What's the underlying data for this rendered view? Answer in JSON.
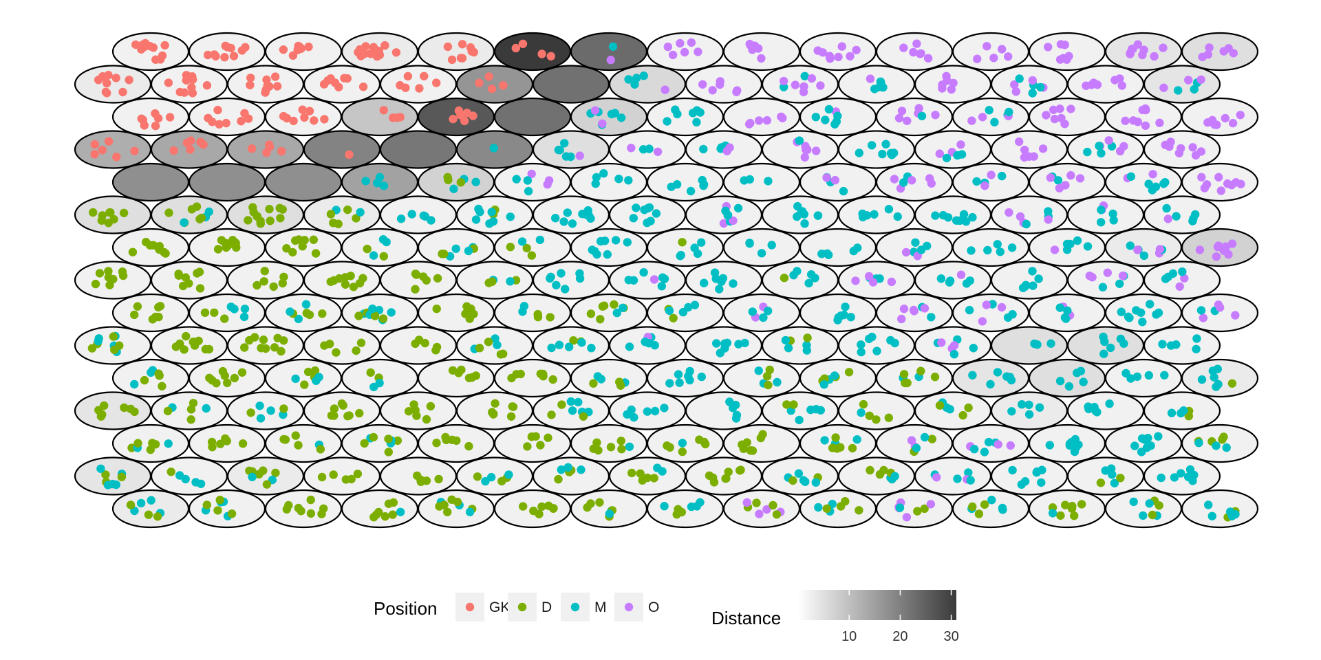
{
  "colors": {
    "GK": "#F8766D",
    "D": "#7CAE00",
    "M": "#00BFC4",
    "O": "#C77CFF",
    "distance_low": "#f7f7f7",
    "distance_high": "#3a3a3a",
    "cell_border": "#000000"
  },
  "chart_data": {
    "type": "heatmap",
    "grid": false,
    "x": {
      "columns": 15,
      "range": [
        1,
        15
      ]
    },
    "y": {
      "rows": 15,
      "range": [
        1,
        15
      ]
    },
    "legend_placement": "bottom",
    "distance_scale": {
      "min": 0,
      "max": 31,
      "breaks": [
        10,
        20,
        30
      ],
      "break_labels": [
        "10",
        "20",
        "30"
      ]
    },
    "position_legend": {
      "title": "Position",
      "entries": [
        {
          "key": "GK",
          "label": "GK"
        },
        {
          "key": "D",
          "label": "D"
        },
        {
          "key": "M",
          "label": "M"
        },
        {
          "key": "O",
          "label": "O"
        }
      ]
    },
    "distance_legend": {
      "title": "Distance"
    },
    "rows": [
      {
        "distance": [
          1,
          1,
          1,
          2,
          2,
          31,
          23,
          1,
          1,
          1,
          1,
          1,
          1,
          3,
          4
        ],
        "composition": [
          "GK",
          "GK",
          "GK",
          "GK",
          "GK",
          "GK",
          "M+O",
          "O",
          "O",
          "O",
          "O",
          "O",
          "O",
          "O",
          "O"
        ],
        "counts": [
          11,
          10,
          7,
          13,
          8,
          4,
          2,
          6,
          7,
          8,
          6,
          5,
          7,
          9,
          6
        ]
      },
      {
        "distance": [
          2,
          1,
          1,
          1,
          1,
          16,
          22,
          5,
          1,
          1,
          1,
          1,
          1,
          1,
          3
        ],
        "composition": [
          "GK",
          "GK",
          "GK",
          "GK",
          "GK",
          "GK",
          "none",
          "O+M",
          "O",
          "O+M",
          "M+O",
          "O",
          "M+O",
          "O",
          "O+M"
        ],
        "counts": [
          9,
          10,
          9,
          8,
          6,
          4,
          0,
          5,
          6,
          8,
          6,
          6,
          8,
          7,
          6
        ]
      },
      {
        "distance": [
          1,
          1,
          1,
          8,
          26,
          22,
          6,
          1,
          1,
          1,
          1,
          1,
          1,
          1,
          1
        ],
        "composition": [
          "GK",
          "GK",
          "GK",
          "GK",
          "GK",
          "none",
          "M+O",
          "M",
          "O",
          "M+O",
          "M+O",
          "O+M",
          "O+M",
          "O",
          "O"
        ],
        "counts": [
          7,
          8,
          8,
          4,
          6,
          0,
          8,
          7,
          6,
          7,
          7,
          7,
          7,
          8,
          7
        ]
      },
      {
        "distance": [
          12,
          13,
          13,
          19,
          21,
          18,
          4,
          1,
          1,
          1,
          1,
          1,
          1,
          1,
          1
        ],
        "composition": [
          "GK",
          "GK",
          "GK",
          "GK",
          "none",
          "M",
          "M+O",
          "M+O",
          "M+O",
          "O+M",
          "M",
          "M+O",
          "O",
          "O+M",
          "O"
        ],
        "counts": [
          6,
          6,
          5,
          1,
          0,
          1,
          6,
          4,
          6,
          7,
          7,
          6,
          6,
          8,
          8
        ]
      },
      {
        "distance": [
          17,
          17,
          17,
          14,
          6,
          1,
          1,
          1,
          1,
          1,
          1,
          1,
          1,
          1,
          1
        ],
        "composition": [
          "none",
          "none",
          "none",
          "M+D",
          "M+D",
          "M+O",
          "M",
          "M",
          "M",
          "M+O",
          "O+M",
          "M+O",
          "O+M",
          "M+O",
          "O"
        ],
        "counts": [
          0,
          0,
          0,
          4,
          6,
          6,
          5,
          6,
          3,
          5,
          7,
          5,
          7,
          8,
          9
        ]
      },
      {
        "distance": [
          4,
          4,
          4,
          2,
          1,
          1,
          1,
          1,
          1,
          1,
          1,
          1,
          1,
          1,
          1
        ],
        "composition": [
          "D",
          "D+M",
          "D",
          "D+M",
          "M",
          "M+D",
          "M",
          "M",
          "M+O",
          "M",
          "M",
          "M",
          "M+O",
          "M+O",
          "M+O"
        ],
        "counts": [
          8,
          9,
          12,
          7,
          5,
          9,
          9,
          8,
          8,
          8,
          6,
          8,
          7,
          6,
          6
        ]
      },
      {
        "distance": [
          1,
          1,
          1,
          1,
          1,
          1,
          1,
          1,
          1,
          1,
          1,
          1,
          1,
          2,
          6
        ],
        "composition": [
          "D",
          "D",
          "D",
          "D+M",
          "M+D",
          "D+M",
          "M",
          "M+D",
          "M",
          "M",
          "M+O",
          "M",
          "M+O",
          "M+O",
          "O"
        ],
        "counts": [
          8,
          9,
          8,
          5,
          7,
          5,
          8,
          6,
          4,
          5,
          6,
          5,
          6,
          7,
          9
        ]
      },
      {
        "distance": [
          1,
          1,
          1,
          1,
          1,
          1,
          1,
          1,
          1,
          1,
          1,
          1,
          1,
          1,
          1
        ],
        "composition": [
          "D",
          "D",
          "D",
          "D",
          "D+M",
          "D+M",
          "M",
          "M+O",
          "M",
          "M+D",
          "O+M",
          "M+O",
          "M",
          "M+O",
          "M+O"
        ],
        "counts": [
          8,
          8,
          6,
          9,
          6,
          5,
          7,
          7,
          7,
          6,
          7,
          6,
          6,
          7,
          6
        ]
      },
      {
        "distance": [
          1,
          1,
          1,
          1,
          1,
          1,
          1,
          1,
          1,
          1,
          1,
          1,
          1,
          1,
          1
        ],
        "composition": [
          "D",
          "D+M",
          "D+M",
          "D+M",
          "D",
          "M+D",
          "D+M",
          "M+D",
          "M+O",
          "M",
          "O+M",
          "O+M",
          "M+O",
          "M",
          "M+O"
        ],
        "counts": [
          7,
          7,
          7,
          10,
          7,
          5,
          8,
          6,
          5,
          6,
          7,
          7,
          6,
          9,
          6
        ]
      },
      {
        "distance": [
          1,
          1,
          1,
          1,
          1,
          1,
          1,
          1,
          1,
          1,
          1,
          1,
          4,
          4,
          1
        ],
        "composition": [
          "D+M",
          "D",
          "D",
          "D",
          "D",
          "D+M",
          "M+D",
          "M+O",
          "M",
          "M+D",
          "M",
          "M+O",
          "M+O",
          "M+O",
          "M"
        ],
        "counts": [
          10,
          10,
          10,
          5,
          5,
          7,
          7,
          6,
          7,
          6,
          7,
          7,
          3,
          6,
          5
        ]
      },
      {
        "distance": [
          1,
          1,
          1,
          1,
          1,
          1,
          1,
          1,
          1,
          1,
          1,
          3,
          4,
          1,
          2
        ],
        "composition": [
          "D+M",
          "D",
          "D+M",
          "D+M",
          "D",
          "D",
          "M+D",
          "M",
          "M+D",
          "M+D",
          "D+M",
          "M",
          "M",
          "M",
          "M+O+D"
        ],
        "counts": [
          7,
          8,
          7,
          4,
          6,
          7,
          6,
          7,
          6,
          7,
          7,
          6,
          5,
          5,
          7
        ]
      },
      {
        "distance": [
          3,
          1,
          1,
          1,
          1,
          1,
          1,
          1,
          1,
          1,
          1,
          1,
          2,
          1,
          1
        ],
        "composition": [
          "D",
          "D+M",
          "D+M",
          "D",
          "D",
          "D",
          "D+M",
          "M",
          "M",
          "M+D",
          "M+D",
          "M+D",
          "M",
          "M",
          "M+D"
        ],
        "counts": [
          7,
          6,
          6,
          8,
          6,
          7,
          8,
          6,
          5,
          7,
          5,
          6,
          5,
          6,
          5
        ]
      },
      {
        "distance": [
          1,
          1,
          1,
          1,
          1,
          1,
          1,
          1,
          1,
          1,
          1,
          1,
          1,
          1,
          1
        ],
        "composition": [
          "D+M",
          "D",
          "D+M",
          "D+M",
          "D",
          "D",
          "D+M",
          "D+M",
          "D",
          "D+M",
          "D+O+M",
          "M+O",
          "M",
          "M",
          "M+D"
        ],
        "counts": [
          7,
          6,
          6,
          8,
          6,
          5,
          7,
          7,
          7,
          8,
          6,
          7,
          8,
          8,
          7
        ]
      },
      {
        "distance": [
          3,
          1,
          2,
          1,
          1,
          1,
          1,
          1,
          1,
          1,
          1,
          1,
          1,
          1,
          1
        ],
        "composition": [
          "D+M",
          "D+M",
          "D+M",
          "D",
          "D",
          "D+M",
          "D+M",
          "D+M",
          "D",
          "D+M",
          "M+D",
          "M+O+D",
          "M",
          "M+D",
          "M"
        ],
        "counts": [
          8,
          5,
          8,
          5,
          5,
          6,
          6,
          7,
          8,
          7,
          7,
          6,
          7,
          6,
          7
        ]
      },
      {
        "distance": [
          2,
          1,
          1,
          1,
          1,
          1,
          1,
          1,
          1,
          1,
          1,
          1,
          1,
          1,
          1
        ],
        "composition": [
          "D+M",
          "D+M",
          "D",
          "D+M",
          "D+M",
          "D",
          "M+D",
          "M+D",
          "D+O",
          "M+D",
          "O+D+M",
          "M+D",
          "D+M",
          "M+D",
          "M+D"
        ],
        "counts": [
          7,
          8,
          8,
          8,
          9,
          7,
          7,
          7,
          8,
          7,
          8,
          7,
          8,
          7,
          7
        ]
      }
    ]
  }
}
